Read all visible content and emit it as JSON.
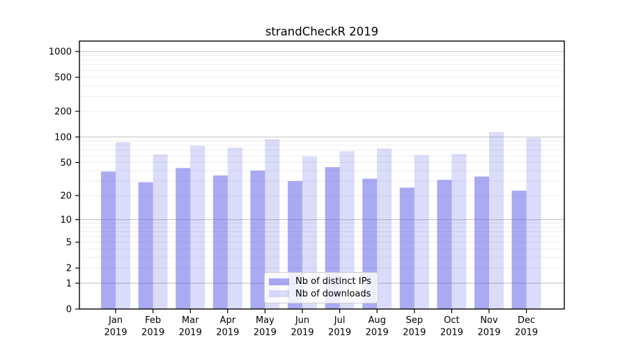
{
  "title": "strandCheckR 2019",
  "chart_data": {
    "type": "bar",
    "title": "strandCheckR 2019",
    "categories": [
      "Jan 2019",
      "Feb 2019",
      "Mar 2019",
      "Apr 2019",
      "May 2019",
      "Jun 2019",
      "Jul 2019",
      "Aug 2019",
      "Sep 2019",
      "Oct 2019",
      "Nov 2019",
      "Dec 2019"
    ],
    "series": [
      {
        "name": "Nb of distinct IPs",
        "color": "rgba(85,85,230,0.5)",
        "values": [
          39,
          29,
          43,
          35,
          40,
          30,
          44,
          32,
          25,
          31,
          34,
          23
        ]
      },
      {
        "name": "Nb of downloads",
        "color": "rgba(85,85,230,0.21)",
        "values": [
          87,
          62,
          79,
          75,
          94,
          59,
          68,
          73,
          61,
          63,
          114,
          98
        ]
      }
    ],
    "xlabel": "",
    "ylabel": "",
    "yscale": "log1p",
    "yticks": [
      0,
      1,
      2,
      5,
      10,
      20,
      50,
      100,
      200,
      500,
      1000
    ],
    "ylim": [
      0,
      1330
    ],
    "grid": "horizontal",
    "legend_position": "lower center"
  },
  "colors": {
    "bar_distinct_ips": "rgba(85,85,230,0.5)",
    "bar_downloads": "rgba(85,85,230,0.21)",
    "grid_major": "#c9c9c9",
    "grid_minor": "#ededed",
    "axis": "#000000",
    "text": "#000000",
    "legend_border": "#cccccc"
  }
}
